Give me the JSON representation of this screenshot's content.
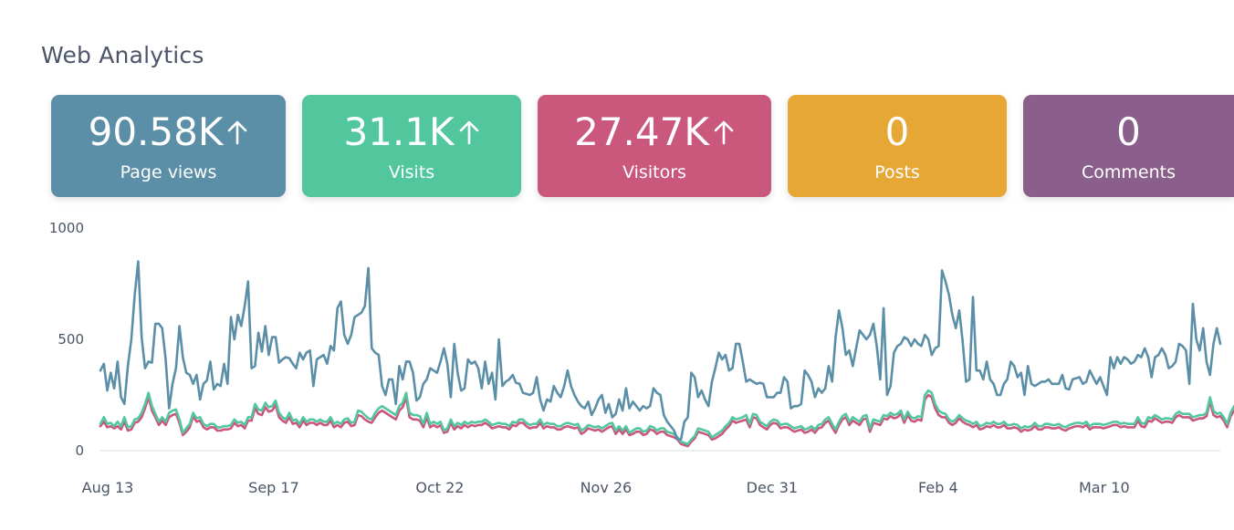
{
  "page": {
    "title": "Web Analytics"
  },
  "cards": [
    {
      "value": "90.58K",
      "label": "Page views",
      "trend": "up",
      "color": "#5b8fa8"
    },
    {
      "value": "31.1K",
      "label": "Visits",
      "trend": "up",
      "color": "#52c79e"
    },
    {
      "value": "27.47K",
      "label": "Visitors",
      "trend": "up",
      "color": "#c9587c"
    },
    {
      "value": "0",
      "label": "Posts",
      "trend": "",
      "color": "#e6a735"
    },
    {
      "value": "0",
      "label": "Comments",
      "trend": "",
      "color": "#8a5f8b"
    }
  ],
  "chart_data": {
    "type": "line",
    "x_start": "2023-08-13",
    "x_end": "2024-04-05",
    "xticks": [
      "Aug 13",
      "Sep 17",
      "Oct 22",
      "Nov 26",
      "Dec 31",
      "Feb 4",
      "Mar 10"
    ],
    "yticks": [
      "0",
      "500",
      "1000"
    ],
    "ylim": [
      0,
      1000
    ],
    "grid": false,
    "legend": "none",
    "series": [
      {
        "color": "#5b8fa8",
        "values": [
          360,
          390,
          270,
          350,
          280,
          400,
          240,
          210,
          380,
          500,
          700,
          850,
          510,
          370,
          400,
          395,
          570,
          570,
          550,
          410,
          190,
          300,
          370,
          560,
          420,
          350,
          340,
          300,
          340,
          230,
          300,
          315,
          400,
          275,
          300,
          290,
          390,
          300,
          600,
          500,
          610,
          560,
          650,
          760,
          370,
          380,
          530,
          445,
          560,
          430,
          510,
          510,
          395,
          410,
          420,
          415,
          390,
          370,
          440,
          410,
          440,
          450,
          290,
          410,
          420,
          430,
          390,
          470,
          450,
          640,
          670,
          520,
          480,
          520,
          600,
          610,
          620,
          650,
          820,
          460,
          440,
          430,
          290,
          250,
          320,
          320,
          210,
          380,
          320,
          400,
          400,
          350,
          225,
          240,
          300,
          320,
          370,
          360,
          350,
          400,
          460,
          390,
          240,
          480,
          350,
          270,
          280,
          410,
          390,
          400,
          370,
          280,
          400,
          300,
          350,
          230,
          500,
          290,
          310,
          320,
          340,
          305,
          300,
          260,
          255,
          250,
          260,
          330,
          230,
          180,
          230,
          220,
          290,
          260,
          240,
          290,
          360,
          290,
          250,
          220,
          200,
          190,
          220,
          160,
          190,
          230,
          250,
          170,
          210,
          150,
          165,
          230,
          180,
          280,
          190,
          220,
          200,
          180,
          200,
          190,
          200,
          280,
          260,
          250,
          160,
          130,
          110,
          90,
          50,
          50,
          130,
          150,
          350,
          330,
          240,
          270,
          230,
          200,
          310,
          370,
          440,
          410,
          430,
          360,
          370,
          480,
          480,
          400,
          310,
          320,
          310,
          300,
          305,
          300,
          240,
          240,
          240,
          260,
          260,
          330,
          310,
          190,
          200,
          200,
          210,
          360,
          340,
          310,
          240,
          280,
          260,
          280,
          380,
          310,
          510,
          630,
          550,
          430,
          450,
          380,
          460,
          540,
          520,
          500,
          520,
          570,
          470,
          320,
          640,
          250,
          290,
          440,
          470,
          480,
          510,
          500,
          470,
          500,
          480,
          470,
          520,
          500,
          430,
          460,
          470,
          810,
          760,
          700,
          610,
          550,
          630,
          490,
          310,
          320,
          690,
          360,
          360,
          320,
          400,
          320,
          300,
          250,
          250,
          300,
          320,
          400,
          380,
          330,
          350,
          250,
          380,
          300,
          290,
          300,
          310,
          310,
          320,
          300,
          300,
          300,
          340,
          280,
          275,
          320,
          325,
          330,
          300,
          310,
          360,
          330,
          300,
          330,
          290,
          250,
          420,
          370,
          420,
          390,
          420,
          410,
          390,
          400,
          430,
          420,
          460,
          420,
          330,
          420,
          430,
          460,
          430,
          370,
          380,
          400,
          480,
          470,
          450,
          300,
          660,
          500,
          450,
          550,
          400,
          340,
          480,
          550,
          480
        ],
        "name": ""
      },
      {
        "color": "#52c79e",
        "values": [
          120,
          150,
          120,
          125,
          110,
          130,
          110,
          150,
          105,
          110,
          140,
          145,
          170,
          210,
          260,
          200,
          165,
          130,
          150,
          130,
          170,
          180,
          185,
          140,
          80,
          100,
          120,
          170,
          145,
          150,
          120,
          110,
          120,
          120,
          105,
          105,
          110,
          110,
          115,
          140,
          125,
          130,
          115,
          150,
          150,
          210,
          185,
          180,
          215,
          195,
          200,
          225,
          170,
          150,
          140,
          170,
          135,
          140,
          120,
          150,
          130,
          140,
          140,
          130,
          140,
          130,
          130,
          150,
          120,
          130,
          120,
          140,
          145,
          125,
          130,
          180,
          175,
          160,
          145,
          140,
          170,
          190,
          200,
          190,
          180,
          170,
          160,
          200,
          215,
          260,
          170,
          160,
          160,
          155,
          120,
          170,
          120,
          130,
          120,
          130,
          90,
          100,
          140,
          110,
          125,
          115,
          130,
          120,
          130,
          125,
          130,
          130,
          140,
          130,
          115,
          120,
          125,
          120,
          120,
          110,
          130,
          125,
          140,
          140,
          125,
          115,
          120,
          120,
          140,
          115,
          125,
          120,
          120,
          110,
          110,
          120,
          125,
          120,
          115,
          120,
          90,
          100,
          115,
          110,
          105,
          110,
          100,
          110,
          120,
          125,
          90,
          110,
          90,
          110,
          80,
          90,
          100,
          100,
          85,
          90,
          110,
          105,
          90,
          100,
          100,
          85,
          80,
          75,
          60,
          40,
          35,
          30,
          50,
          65,
          100,
          95,
          90,
          85,
          60,
          70,
          80,
          90,
          110,
          125,
          150,
          140,
          145,
          150,
          160,
          120,
          165,
          160,
          130,
          120,
          110,
          130,
          140,
          135,
          115,
          120,
          120,
          110,
          100,
          105,
          110,
          95,
          100,
          110,
          95,
          115,
          120,
          140,
          150,
          120,
          95,
          130,
          155,
          165,
          130,
          150,
          140,
          130,
          155,
          160,
          100,
          140,
          135,
          130,
          160,
          155,
          170,
          160,
          165,
          180,
          140,
          175,
          150,
          145,
          155,
          150,
          250,
          270,
          260,
          210,
          180,
          170,
          165,
          140,
          130,
          140,
          160,
          145,
          135,
          130,
          120,
          130,
          110,
          115,
          125,
          120,
          130,
          120,
          120,
          130,
          115,
          115,
          120,
          115,
          100,
          110,
          105,
          110,
          125,
          110,
          110,
          120,
          120,
          115,
          115,
          120,
          110,
          105,
          115,
          120,
          125,
          125,
          120,
          130,
          110,
          120,
          120,
          120,
          115,
          120,
          125,
          130,
          130,
          120,
          125,
          120,
          120,
          120,
          150,
          125,
          120,
          150,
          145,
          160,
          150,
          140,
          145,
          145,
          140,
          165,
          175,
          165,
          165,
          165,
          150,
          155,
          160,
          160,
          170,
          240,
          180,
          165,
          170,
          150,
          120,
          170,
          200,
          175
        ],
        "name": ""
      },
      {
        "color": "#c9587c",
        "values": [
          110,
          130,
          105,
          110,
          100,
          110,
          95,
          130,
          90,
          95,
          125,
          130,
          150,
          190,
          240,
          180,
          150,
          115,
          135,
          115,
          150,
          160,
          165,
          125,
          70,
          85,
          105,
          155,
          130,
          135,
          105,
          95,
          105,
          105,
          90,
          90,
          95,
          95,
          100,
          125,
          110,
          115,
          100,
          135,
          135,
          190,
          165,
          160,
          195,
          175,
          180,
          205,
          150,
          135,
          125,
          150,
          120,
          125,
          105,
          135,
          115,
          125,
          125,
          115,
          125,
          115,
          115,
          135,
          105,
          115,
          105,
          125,
          130,
          110,
          115,
          160,
          155,
          140,
          130,
          125,
          150,
          170,
          180,
          170,
          160,
          150,
          140,
          180,
          195,
          240,
          150,
          140,
          140,
          135,
          105,
          150,
          105,
          115,
          105,
          115,
          80,
          85,
          125,
          95,
          110,
          100,
          115,
          105,
          115,
          110,
          115,
          115,
          125,
          115,
          100,
          105,
          110,
          105,
          105,
          95,
          115,
          110,
          125,
          125,
          110,
          100,
          105,
          105,
          125,
          100,
          110,
          105,
          105,
          95,
          95,
          105,
          110,
          105,
          100,
          105,
          75,
          85,
          100,
          95,
          90,
          95,
          85,
          95,
          105,
          110,
          75,
          95,
          75,
          95,
          70,
          75,
          85,
          85,
          70,
          75,
          95,
          90,
          75,
          85,
          85,
          70,
          65,
          60,
          50,
          30,
          25,
          20,
          40,
          55,
          85,
          80,
          75,
          70,
          50,
          55,
          65,
          75,
          95,
          110,
          135,
          125,
          130,
          135,
          140,
          105,
          150,
          145,
          115,
          105,
          95,
          115,
          125,
          120,
          100,
          105,
          105,
          95,
          85,
          90,
          95,
          80,
          85,
          95,
          80,
          100,
          105,
          125,
          135,
          105,
          80,
          115,
          140,
          150,
          115,
          135,
          125,
          115,
          140,
          145,
          85,
          125,
          120,
          115,
          145,
          140,
          155,
          145,
          150,
          165,
          125,
          160,
          135,
          130,
          140,
          135,
          230,
          250,
          240,
          190,
          160,
          150,
          150,
          125,
          115,
          125,
          145,
          130,
          120,
          115,
          105,
          115,
          95,
          100,
          110,
          105,
          115,
          105,
          105,
          115,
          100,
          100,
          105,
          100,
          85,
          95,
          90,
          95,
          110,
          95,
          95,
          105,
          105,
          100,
          100,
          105,
          95,
          90,
          100,
          105,
          110,
          110,
          105,
          115,
          95,
          105,
          105,
          105,
          100,
          105,
          110,
          115,
          115,
          105,
          110,
          105,
          105,
          105,
          135,
          110,
          105,
          135,
          130,
          145,
          135,
          125,
          130,
          130,
          125,
          150,
          160,
          150,
          150,
          150,
          135,
          140,
          145,
          145,
          155,
          220,
          160,
          150,
          155,
          135,
          105,
          155,
          180,
          155
        ],
        "name": ""
      }
    ]
  }
}
